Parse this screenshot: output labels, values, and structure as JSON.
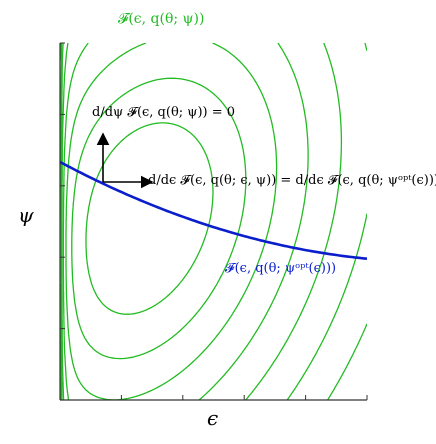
{
  "colors": {
    "contour": "#22bb22",
    "optimal_curve": "#0a1ecc",
    "axes": "#333333",
    "arrow": "#000000"
  },
  "labels": {
    "title": "𝓕(ϵ, q(θ; ψ))",
    "xlabel": "ϵ",
    "ylabel": "ψ",
    "vertical_arrow": "d/dψ 𝓕(ϵ, q(θ; ψ)) = 0",
    "horizontal_arrow": "d/dϵ 𝓕(ϵ, q(θ; ϵ, ψ)) = d/dϵ 𝓕(ϵ, q(θ; ψᵒᵖᵗ(ϵ)))",
    "blue_curve": "𝓕(ϵ, q(θ; ψᵒᵖᵗ(ϵ)))"
  },
  "diagram": {
    "contour_levels": [
      0.6,
      1.15,
      1.85,
      2.75,
      3.9,
      5.3,
      7.0,
      9.0,
      11.5,
      14.5,
      18.0
    ],
    "contour_center": [
      1.25,
      3.0
    ],
    "optimal_curve": {
      "a": 3.55,
      "b": 0.55,
      "c": 0.4
    }
  }
}
